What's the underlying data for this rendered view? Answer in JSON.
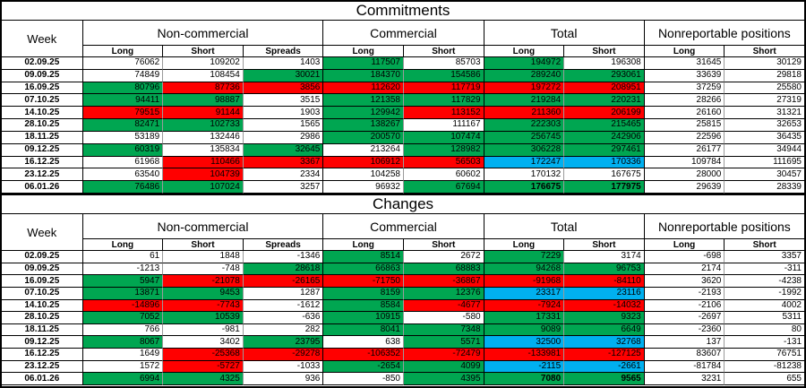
{
  "colors": {
    "green": "#00A651",
    "red": "#FF0000",
    "blue": "#00B0F0",
    "grid_gray": "#9a9a9a"
  },
  "color_codes": {
    "w": "white",
    "g": "green",
    "r": "red",
    "b": "blue"
  },
  "header": {
    "week": "Week",
    "groups": [
      {
        "label": "Non-commercial",
        "sub": [
          "Long",
          "Short",
          "Spreads"
        ]
      },
      {
        "label": "Commercial",
        "sub": [
          "Long",
          "Short"
        ]
      },
      {
        "label": "Total",
        "sub": [
          "Long",
          "Short"
        ]
      },
      {
        "label": "Nonreportable positions",
        "sub": [
          "Long",
          "Short"
        ]
      }
    ]
  },
  "tables": [
    {
      "title": "Commitments",
      "rows": [
        {
          "week": "02.09.25",
          "cells": [
            [
              "76062",
              "w"
            ],
            [
              "109202",
              "w"
            ],
            [
              "1403",
              "w"
            ],
            [
              "117507",
              "g"
            ],
            [
              "85703",
              "w"
            ],
            [
              "194972",
              "g"
            ],
            [
              "196308",
              "w"
            ],
            [
              "31645",
              "w"
            ],
            [
              "30129",
              "w"
            ]
          ]
        },
        {
          "week": "09.09.25",
          "cells": [
            [
              "74849",
              "w"
            ],
            [
              "108454",
              "w"
            ],
            [
              "30021",
              "g"
            ],
            [
              "184370",
              "g"
            ],
            [
              "154586",
              "g"
            ],
            [
              "289240",
              "g"
            ],
            [
              "293061",
              "g"
            ],
            [
              "33639",
              "w"
            ],
            [
              "29818",
              "w"
            ]
          ]
        },
        {
          "week": "16.09.25",
          "cells": [
            [
              "80796",
              "g"
            ],
            [
              "87736",
              "r"
            ],
            [
              "3856",
              "r"
            ],
            [
              "112620",
              "r"
            ],
            [
              "117719",
              "r"
            ],
            [
              "197272",
              "r"
            ],
            [
              "208951",
              "r"
            ],
            [
              "37259",
              "w"
            ],
            [
              "25580",
              "w"
            ]
          ]
        },
        {
          "week": "07.10.25",
          "cells": [
            [
              "94411",
              "g"
            ],
            [
              "98887",
              "g"
            ],
            [
              "3515",
              "w"
            ],
            [
              "121358",
              "g"
            ],
            [
              "117829",
              "g"
            ],
            [
              "219284",
              "g"
            ],
            [
              "220231",
              "g"
            ],
            [
              "28266",
              "w"
            ],
            [
              "27319",
              "w"
            ]
          ]
        },
        {
          "week": "14.10.25",
          "cells": [
            [
              "79515",
              "r"
            ],
            [
              "91144",
              "r"
            ],
            [
              "1903",
              "w"
            ],
            [
              "129942",
              "g"
            ],
            [
              "113152",
              "r"
            ],
            [
              "211360",
              "r"
            ],
            [
              "206199",
              "r"
            ],
            [
              "26160",
              "w"
            ],
            [
              "31321",
              "w"
            ]
          ]
        },
        {
          "week": "28.10.25",
          "cells": [
            [
              "82471",
              "g"
            ],
            [
              "102733",
              "g"
            ],
            [
              "1565",
              "w"
            ],
            [
              "138267",
              "g"
            ],
            [
              "111167",
              "w"
            ],
            [
              "222303",
              "g"
            ],
            [
              "215465",
              "g"
            ],
            [
              "25815",
              "w"
            ],
            [
              "32653",
              "w"
            ]
          ]
        },
        {
          "week": "18.11.25",
          "cells": [
            [
              "53189",
              "w"
            ],
            [
              "132446",
              "w"
            ],
            [
              "2986",
              "w"
            ],
            [
              "200570",
              "g"
            ],
            [
              "107474",
              "g"
            ],
            [
              "256745",
              "g"
            ],
            [
              "242906",
              "g"
            ],
            [
              "22596",
              "w"
            ],
            [
              "36435",
              "w"
            ]
          ]
        },
        {
          "week": "09.12.25",
          "cells": [
            [
              "60319",
              "g"
            ],
            [
              "135834",
              "w"
            ],
            [
              "32645",
              "g"
            ],
            [
              "213264",
              "w"
            ],
            [
              "128982",
              "g"
            ],
            [
              "306228",
              "g"
            ],
            [
              "297461",
              "g"
            ],
            [
              "26177",
              "w"
            ],
            [
              "34944",
              "w"
            ]
          ]
        },
        {
          "week": "16.12.25",
          "cells": [
            [
              "61968",
              "w"
            ],
            [
              "110466",
              "r"
            ],
            [
              "3367",
              "r"
            ],
            [
              "106912",
              "r"
            ],
            [
              "56503",
              "r"
            ],
            [
              "172247",
              "b"
            ],
            [
              "170336",
              "b"
            ],
            [
              "109784",
              "w"
            ],
            [
              "111695",
              "w"
            ]
          ]
        },
        {
          "week": "23.12.25",
          "cells": [
            [
              "63540",
              "w"
            ],
            [
              "104739",
              "r"
            ],
            [
              "2334",
              "w"
            ],
            [
              "104258",
              "w"
            ],
            [
              "60602",
              "w"
            ],
            [
              "170132",
              "w"
            ],
            [
              "167675",
              "w"
            ],
            [
              "28000",
              "w"
            ],
            [
              "30457",
              "w"
            ]
          ]
        },
        {
          "week": "06.01.26",
          "cells": [
            [
              "76486",
              "g"
            ],
            [
              "107024",
              "g"
            ],
            [
              "3257",
              "w"
            ],
            [
              "96932",
              "w"
            ],
            [
              "67694",
              "g"
            ],
            [
              "176675",
              "g"
            ],
            [
              "177975",
              "g"
            ],
            [
              "29639",
              "w"
            ],
            [
              "28339",
              "w"
            ]
          ],
          "bold": [
            5,
            6
          ]
        }
      ]
    },
    {
      "title": "Changes",
      "rows": [
        {
          "week": "02.09.25",
          "cells": [
            [
              "61",
              "w"
            ],
            [
              "1848",
              "w"
            ],
            [
              "-1346",
              "w"
            ],
            [
              "8514",
              "g"
            ],
            [
              "2672",
              "w"
            ],
            [
              "7229",
              "g"
            ],
            [
              "3174",
              "w"
            ],
            [
              "-698",
              "w"
            ],
            [
              "3357",
              "w"
            ]
          ]
        },
        {
          "week": "09.09.25",
          "cells": [
            [
              "-1213",
              "w"
            ],
            [
              "-748",
              "w"
            ],
            [
              "28618",
              "g"
            ],
            [
              "66863",
              "g"
            ],
            [
              "68883",
              "g"
            ],
            [
              "94268",
              "g"
            ],
            [
              "96753",
              "g"
            ],
            [
              "2174",
              "w"
            ],
            [
              "-311",
              "w"
            ]
          ]
        },
        {
          "week": "16.09.25",
          "cells": [
            [
              "5947",
              "g"
            ],
            [
              "-21078",
              "r"
            ],
            [
              "-26165",
              "r"
            ],
            [
              "-71750",
              "r"
            ],
            [
              "-36867",
              "r"
            ],
            [
              "-91968",
              "r"
            ],
            [
              "-84110",
              "r"
            ],
            [
              "3620",
              "w"
            ],
            [
              "-4238",
              "w"
            ]
          ]
        },
        {
          "week": "07.10.25",
          "cells": [
            [
              "13871",
              "g"
            ],
            [
              "9453",
              "g"
            ],
            [
              "1287",
              "w"
            ],
            [
              "8159",
              "g"
            ],
            [
              "12376",
              "g"
            ],
            [
              "23317",
              "b"
            ],
            [
              "23116",
              "b"
            ],
            [
              "-2193",
              "w"
            ],
            [
              "-1992",
              "w"
            ]
          ]
        },
        {
          "week": "14.10.25",
          "cells": [
            [
              "-14896",
              "r"
            ],
            [
              "-7743",
              "r"
            ],
            [
              "-1612",
              "w"
            ],
            [
              "8584",
              "g"
            ],
            [
              "-4677",
              "r"
            ],
            [
              "-7924",
              "r"
            ],
            [
              "-14032",
              "r"
            ],
            [
              "-2106",
              "w"
            ],
            [
              "4002",
              "w"
            ]
          ]
        },
        {
          "week": "28.10.25",
          "cells": [
            [
              "7052",
              "g"
            ],
            [
              "10539",
              "g"
            ],
            [
              "-636",
              "w"
            ],
            [
              "10915",
              "g"
            ],
            [
              "-580",
              "w"
            ],
            [
              "17331",
              "g"
            ],
            [
              "9323",
              "g"
            ],
            [
              "-2697",
              "w"
            ],
            [
              "5311",
              "w"
            ]
          ]
        },
        {
          "week": "18.11.25",
          "cells": [
            [
              "766",
              "w"
            ],
            [
              "-981",
              "w"
            ],
            [
              "282",
              "w"
            ],
            [
              "8041",
              "g"
            ],
            [
              "7348",
              "g"
            ],
            [
              "9089",
              "g"
            ],
            [
              "6649",
              "g"
            ],
            [
              "-2360",
              "w"
            ],
            [
              "80",
              "w"
            ]
          ]
        },
        {
          "week": "09.12.25",
          "cells": [
            [
              "8067",
              "g"
            ],
            [
              "3402",
              "w"
            ],
            [
              "23795",
              "g"
            ],
            [
              "638",
              "w"
            ],
            [
              "5571",
              "g"
            ],
            [
              "32500",
              "b"
            ],
            [
              "32768",
              "b"
            ],
            [
              "137",
              "w"
            ],
            [
              "-131",
              "w"
            ]
          ]
        },
        {
          "week": "16.12.25",
          "cells": [
            [
              "1649",
              "w"
            ],
            [
              "-25368",
              "r"
            ],
            [
              "-29278",
              "r"
            ],
            [
              "-106352",
              "r"
            ],
            [
              "-72479",
              "r"
            ],
            [
              "-133981",
              "r"
            ],
            [
              "-127125",
              "r"
            ],
            [
              "83607",
              "w"
            ],
            [
              "76751",
              "w"
            ]
          ]
        },
        {
          "week": "23.12.25",
          "cells": [
            [
              "1572",
              "w"
            ],
            [
              "-5727",
              "r"
            ],
            [
              "-1033",
              "w"
            ],
            [
              "-2654",
              "g"
            ],
            [
              "4099",
              "g"
            ],
            [
              "-2115",
              "b"
            ],
            [
              "-2661",
              "b"
            ],
            [
              "-81784",
              "w"
            ],
            [
              "-81238",
              "w"
            ]
          ]
        },
        {
          "week": "06.01.26",
          "cells": [
            [
              "6994",
              "g"
            ],
            [
              "4325",
              "g"
            ],
            [
              "936",
              "w"
            ],
            [
              "-850",
              "w"
            ],
            [
              "4395",
              "g"
            ],
            [
              "7080",
              "g"
            ],
            [
              "9565",
              "g"
            ],
            [
              "3231",
              "w"
            ],
            [
              "655",
              "w"
            ]
          ],
          "bold": [
            5,
            6
          ]
        }
      ]
    }
  ]
}
